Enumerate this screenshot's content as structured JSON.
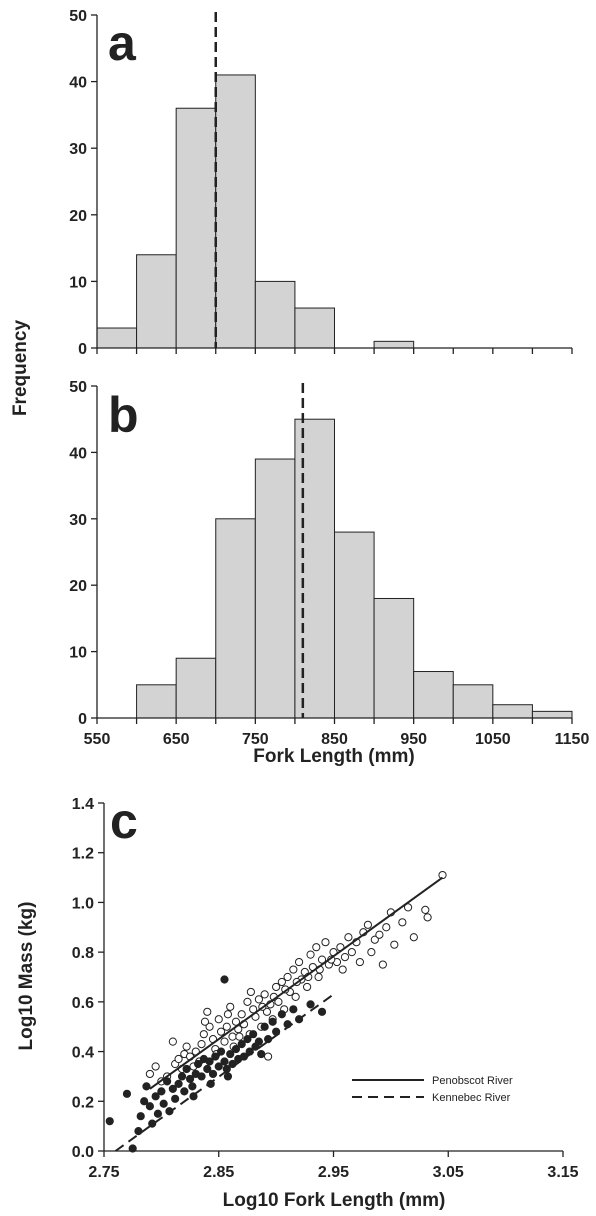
{
  "chart_data": [
    {
      "type": "bar",
      "panel": "a",
      "bin_edges": [
        550,
        600,
        650,
        700,
        750,
        800,
        850,
        900,
        950,
        1000,
        1050,
        1100,
        1150
      ],
      "values": [
        3,
        14,
        36,
        41,
        10,
        6,
        0,
        1,
        0,
        0,
        0,
        0
      ],
      "mean_line_x": 700,
      "xlim": [
        550,
        1150
      ],
      "ylim": [
        0,
        50
      ],
      "yticks": [
        "0",
        "10",
        "20",
        "30",
        "40",
        "50"
      ]
    },
    {
      "type": "bar",
      "panel": "b",
      "bin_edges": [
        550,
        600,
        650,
        700,
        750,
        800,
        850,
        900,
        950,
        1000,
        1050,
        1100,
        1150
      ],
      "values": [
        0,
        5,
        9,
        30,
        39,
        45,
        28,
        18,
        7,
        5,
        2,
        1
      ],
      "mean_line_x": 810,
      "xlim": [
        550,
        1150
      ],
      "ylim": [
        0,
        50
      ],
      "yticks": [
        "0",
        "10",
        "20",
        "30",
        "40",
        "50"
      ],
      "xticks": [
        "550",
        "650",
        "750",
        "850",
        "950",
        "1050",
        "1150"
      ]
    },
    {
      "type": "scatter",
      "panel": "c",
      "xlim": [
        2.75,
        3.15
      ],
      "ylim": [
        0,
        1.4
      ],
      "xticks": [
        "2.75",
        "2.85",
        "2.95",
        "3.05",
        "3.15"
      ],
      "yticks": [
        "0.0",
        "0.2",
        "0.4",
        "0.6",
        "0.8",
        "1.0",
        "1.2",
        "1.4"
      ],
      "series": [
        {
          "name": "Penobscot River",
          "marker": "open-circle",
          "fit_line": "solid",
          "fit": [
            [
              2.79,
              0.25
            ],
            [
              3.045,
              1.1
            ]
          ],
          "points": [
            [
              2.79,
              0.31
            ],
            [
              2.795,
              0.34
            ],
            [
              2.8,
              0.28
            ],
            [
              2.805,
              0.3
            ],
            [
              2.81,
              0.44
            ],
            [
              2.812,
              0.35
            ],
            [
              2.815,
              0.37
            ],
            [
              2.818,
              0.33
            ],
            [
              2.82,
              0.39
            ],
            [
              2.822,
              0.42
            ],
            [
              2.825,
              0.38
            ],
            [
              2.828,
              0.34
            ],
            [
              2.83,
              0.4
            ],
            [
              2.833,
              0.36
            ],
            [
              2.835,
              0.43
            ],
            [
              2.837,
              0.47
            ],
            [
              2.84,
              0.56
            ],
            [
              2.842,
              0.5
            ],
            [
              2.845,
              0.45
            ],
            [
              2.847,
              0.41
            ],
            [
              2.85,
              0.53
            ],
            [
              2.852,
              0.48
            ],
            [
              2.855,
              0.44
            ],
            [
              2.857,
              0.5
            ],
            [
              2.86,
              0.58
            ],
            [
              2.862,
              0.46
            ],
            [
              2.865,
              0.52
            ],
            [
              2.867,
              0.49
            ],
            [
              2.87,
              0.55
            ],
            [
              2.872,
              0.51
            ],
            [
              2.875,
              0.6
            ],
            [
              2.877,
              0.47
            ],
            [
              2.88,
              0.57
            ],
            [
              2.882,
              0.54
            ],
            [
              2.885,
              0.61
            ],
            [
              2.887,
              0.5
            ],
            [
              2.89,
              0.63
            ],
            [
              2.892,
              0.56
            ],
            [
              2.895,
              0.59
            ],
            [
              2.897,
              0.53
            ],
            [
              2.9,
              0.66
            ],
            [
              2.902,
              0.6
            ],
            [
              2.905,
              0.68
            ],
            [
              2.907,
              0.57
            ],
            [
              2.91,
              0.7
            ],
            [
              2.912,
              0.64
            ],
            [
              2.915,
              0.73
            ],
            [
              2.917,
              0.62
            ],
            [
              2.92,
              0.76
            ],
            [
              2.922,
              0.69
            ],
            [
              2.925,
              0.72
            ],
            [
              2.927,
              0.66
            ],
            [
              2.93,
              0.79
            ],
            [
              2.932,
              0.74
            ],
            [
              2.935,
              0.82
            ],
            [
              2.937,
              0.7
            ],
            [
              2.94,
              0.77
            ],
            [
              2.943,
              0.84
            ],
            [
              2.946,
              0.75
            ],
            [
              2.95,
              0.8
            ],
            [
              2.953,
              0.76
            ],
            [
              2.956,
              0.82
            ],
            [
              2.96,
              0.78
            ],
            [
              2.963,
              0.86
            ],
            [
              2.966,
              0.8
            ],
            [
              2.97,
              0.84
            ],
            [
              2.973,
              0.76
            ],
            [
              2.976,
              0.88
            ],
            [
              2.98,
              0.91
            ],
            [
              2.983,
              0.8
            ],
            [
              2.986,
              0.85
            ],
            [
              2.99,
              0.87
            ],
            [
              2.993,
              0.75
            ],
            [
              2.996,
              0.9
            ],
            [
              3.0,
              0.96
            ],
            [
              3.003,
              0.83
            ],
            [
              3.01,
              0.92
            ],
            [
              3.015,
              0.98
            ],
            [
              3.02,
              0.86
            ],
            [
              3.03,
              0.97
            ],
            [
              3.032,
              0.94
            ],
            [
              3.045,
              1.11
            ],
            [
              2.838,
              0.52
            ],
            [
              2.858,
              0.55
            ],
            [
              2.878,
              0.64
            ],
            [
              2.898,
              0.62
            ],
            [
              2.918,
              0.68
            ],
            [
              2.938,
              0.73
            ],
            [
              2.958,
              0.73
            ],
            [
              2.848,
              0.39
            ],
            [
              2.868,
              0.46
            ],
            [
              2.888,
              0.58
            ],
            [
              2.908,
              0.65
            ],
            [
              2.928,
              0.7
            ],
            [
              2.948,
              0.77
            ],
            [
              2.893,
              0.38
            ],
            [
              2.863,
              0.42
            ]
          ]
        },
        {
          "name": "Kennebec River",
          "marker": "filled-circle",
          "fit_line": "dashed",
          "fit": [
            [
              2.76,
              0.0
            ],
            [
              2.95,
              0.63
            ]
          ],
          "points": [
            [
              2.755,
              0.12
            ],
            [
              2.77,
              0.23
            ],
            [
              2.775,
              0.01
            ],
            [
              2.78,
              0.08
            ],
            [
              2.782,
              0.14
            ],
            [
              2.785,
              0.2
            ],
            [
              2.787,
              0.26
            ],
            [
              2.79,
              0.18
            ],
            [
              2.792,
              0.11
            ],
            [
              2.795,
              0.22
            ],
            [
              2.797,
              0.15
            ],
            [
              2.8,
              0.24
            ],
            [
              2.802,
              0.19
            ],
            [
              2.805,
              0.28
            ],
            [
              2.807,
              0.16
            ],
            [
              2.81,
              0.25
            ],
            [
              2.812,
              0.21
            ],
            [
              2.815,
              0.27
            ],
            [
              2.818,
              0.3
            ],
            [
              2.82,
              0.24
            ],
            [
              2.822,
              0.33
            ],
            [
              2.825,
              0.29
            ],
            [
              2.827,
              0.26
            ],
            [
              2.83,
              0.31
            ],
            [
              2.832,
              0.35
            ],
            [
              2.835,
              0.3
            ],
            [
              2.837,
              0.37
            ],
            [
              2.84,
              0.33
            ],
            [
              2.842,
              0.36
            ],
            [
              2.845,
              0.31
            ],
            [
              2.847,
              0.38
            ],
            [
              2.85,
              0.34
            ],
            [
              2.852,
              0.4
            ],
            [
              2.855,
              0.36
            ],
            [
              2.857,
              0.33
            ],
            [
              2.86,
              0.39
            ],
            [
              2.862,
              0.35
            ],
            [
              2.865,
              0.41
            ],
            [
              2.867,
              0.37
            ],
            [
              2.87,
              0.43
            ],
            [
              2.872,
              0.38
            ],
            [
              2.875,
              0.45
            ],
            [
              2.877,
              0.4
            ],
            [
              2.88,
              0.47
            ],
            [
              2.882,
              0.42
            ],
            [
              2.885,
              0.44
            ],
            [
              2.887,
              0.39
            ],
            [
              2.89,
              0.5
            ],
            [
              2.893,
              0.45
            ],
            [
              2.897,
              0.52
            ],
            [
              2.9,
              0.48
            ],
            [
              2.905,
              0.55
            ],
            [
              2.91,
              0.51
            ],
            [
              2.915,
              0.57
            ],
            [
              2.92,
              0.53
            ],
            [
              2.93,
              0.59
            ],
            [
              2.94,
              0.56
            ],
            [
              2.855,
              0.69
            ],
            [
              2.828,
              0.22
            ],
            [
              2.843,
              0.27
            ],
            [
              2.858,
              0.3
            ]
          ]
        }
      ]
    }
  ],
  "panels": {
    "a": {
      "letter": "a"
    },
    "b": {
      "letter": "b"
    },
    "c": {
      "letter": "c"
    }
  },
  "axes": {
    "hist_ylabel": "Frequency",
    "hist_xlabel": "Fork Length (mm)",
    "scatter_ylabel": "Log10 Mass (kg)",
    "scatter_xlabel": "Log10 Fork Length (mm)"
  },
  "legend": {
    "penobscot": "Penobscot River",
    "kennebec": "Kennebec River"
  },
  "colors": {
    "bar_fill": "#d3d3d3",
    "ink": "#222222"
  }
}
